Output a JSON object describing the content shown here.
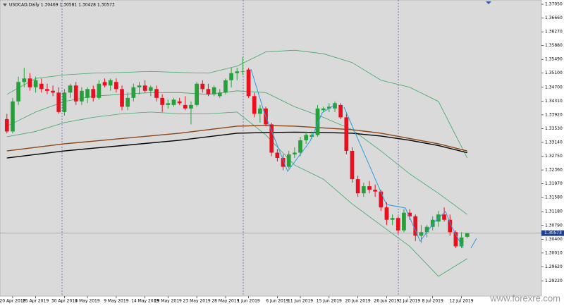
{
  "chart_data": {
    "type": "candlestick",
    "title": "USDCAD,Daily 1.30469 1.30581 1.30428 1.30573",
    "watermark": "www.forexre.com",
    "up_color": "#27a03a",
    "down_color": "#e8101e",
    "open": [
      1.338,
      1.3345,
      1.343,
      1.3485,
      1.3495,
      1.347,
      1.348,
      1.3465,
      1.346,
      1.3455,
      1.34,
      1.3455,
      1.3475,
      1.343,
      1.344,
      1.3465,
      1.344,
      1.3485,
      1.3475,
      1.3485,
      1.3465,
      1.3415,
      1.344,
      1.347,
      1.3475,
      1.346,
      1.3465,
      1.344,
      1.342,
      1.342,
      1.343,
      1.342,
      1.341,
      1.342,
      1.348,
      1.3465,
      1.345,
      1.3445,
      1.3455,
      1.349,
      1.351,
      1.3515,
      1.352,
      1.3445,
      1.3395,
      1.341,
      1.3365,
      1.3285,
      1.327,
      1.3245,
      1.328,
      1.3285,
      1.332,
      1.333,
      1.3335,
      1.3405,
      1.341,
      1.341,
      1.342,
      1.3385,
      1.329,
      1.321,
      1.317,
      1.319,
      1.318,
      1.3175,
      1.313,
      1.3095,
      1.31,
      1.3065,
      1.3115,
      1.3105,
      1.305,
      1.306,
      1.3075,
      1.309,
      1.311,
      1.3095,
      1.306,
      1.302,
      1.30469
    ],
    "high": [
      1.3395,
      1.344,
      1.35,
      1.3525,
      1.351,
      1.35,
      1.3495,
      1.348,
      1.3475,
      1.347,
      1.3465,
      1.348,
      1.3485,
      1.347,
      1.347,
      1.3475,
      1.349,
      1.3495,
      1.3495,
      1.3495,
      1.3475,
      1.3455,
      1.348,
      1.3485,
      1.349,
      1.3475,
      1.3475,
      1.345,
      1.3435,
      1.344,
      1.344,
      1.3445,
      1.343,
      1.3485,
      1.349,
      1.348,
      1.3475,
      1.3465,
      1.3495,
      1.3525,
      1.3525,
      1.3555,
      1.3525,
      1.3455,
      1.342,
      1.3415,
      1.337,
      1.3295,
      1.328,
      1.329,
      1.33,
      1.333,
      1.3345,
      1.3345,
      1.342,
      1.3415,
      1.3425,
      1.343,
      1.3425,
      1.3395,
      1.33,
      1.322,
      1.32,
      1.3205,
      1.3195,
      1.318,
      1.3145,
      1.311,
      1.3105,
      1.3125,
      1.3125,
      1.311,
      1.308,
      1.308,
      1.3105,
      1.312,
      1.313,
      1.311,
      1.3065,
      1.306,
      1.30581
    ],
    "low": [
      1.334,
      1.334,
      1.342,
      1.347,
      1.346,
      1.3455,
      1.3455,
      1.345,
      1.3445,
      1.3395,
      1.339,
      1.344,
      1.342,
      1.342,
      1.3425,
      1.343,
      1.3435,
      1.347,
      1.346,
      1.3455,
      1.3405,
      1.3405,
      1.343,
      1.345,
      1.3455,
      1.3445,
      1.343,
      1.34,
      1.341,
      1.3415,
      1.342,
      1.3405,
      1.3365,
      1.3415,
      1.3455,
      1.3445,
      1.3445,
      1.344,
      1.345,
      1.347,
      1.349,
      1.3505,
      1.344,
      1.3385,
      1.337,
      1.336,
      1.3275,
      1.326,
      1.3235,
      1.324,
      1.327,
      1.3275,
      1.331,
      1.3325,
      1.333,
      1.34,
      1.34,
      1.34,
      1.338,
      1.328,
      1.32,
      1.316,
      1.316,
      1.317,
      1.316,
      1.312,
      1.308,
      1.308,
      1.3055,
      1.306,
      1.3095,
      1.3035,
      1.303,
      1.3045,
      1.3065,
      1.3075,
      1.309,
      1.305,
      1.3015,
      1.3015,
      1.30428
    ],
    "close": [
      1.3345,
      1.343,
      1.3485,
      1.3495,
      1.347,
      1.349,
      1.3465,
      1.346,
      1.3455,
      1.34,
      1.3455,
      1.3475,
      1.343,
      1.346,
      1.3465,
      1.344,
      1.348,
      1.3475,
      1.349,
      1.3465,
      1.3415,
      1.344,
      1.347,
      1.3475,
      1.346,
      1.347,
      1.344,
      1.342,
      1.3425,
      1.3435,
      1.3425,
      1.341,
      1.342,
      1.348,
      1.3465,
      1.345,
      1.347,
      1.3455,
      1.349,
      1.351,
      1.3515,
      1.3515,
      1.3445,
      1.3395,
      1.341,
      1.3365,
      1.3285,
      1.327,
      1.3245,
      1.328,
      1.3285,
      1.332,
      1.3335,
      1.3335,
      1.341,
      1.341,
      1.3415,
      1.3425,
      1.3385,
      1.329,
      1.321,
      1.317,
      1.319,
      1.318,
      1.3175,
      1.313,
      1.3095,
      1.31,
      1.3065,
      1.3115,
      1.3105,
      1.305,
      1.306,
      1.3075,
      1.3095,
      1.311,
      1.3095,
      1.306,
      1.302,
      1.3045,
      1.30573
    ],
    "current_price": {
      "value": 1.30573,
      "label": "1.30573"
    },
    "series": [
      {
        "color": "#3aa86a",
        "x": [
          0,
          5,
          10,
          15,
          20,
          25,
          30,
          35,
          40,
          45,
          50,
          55,
          60,
          65,
          70,
          75,
          80
        ],
        "values": [
          1.345,
          1.3495,
          1.3505,
          1.351,
          1.3512,
          1.3515,
          1.3512,
          1.351,
          1.353,
          1.357,
          1.3575,
          1.3565,
          1.354,
          1.349,
          1.347,
          1.343,
          1.327
        ]
      },
      {
        "color": "#3aa86a",
        "x": [
          0,
          5,
          10,
          15,
          20,
          25,
          30,
          35,
          40,
          45,
          50,
          55,
          60,
          65,
          70,
          75,
          80
        ],
        "values": [
          1.336,
          1.34,
          1.343,
          1.3445,
          1.345,
          1.3455,
          1.3455,
          1.345,
          1.346,
          1.3455,
          1.3415,
          1.3385,
          1.335,
          1.329,
          1.3225,
          1.317,
          1.311
        ]
      },
      {
        "color": "#3aa86a",
        "x": [
          0,
          5,
          10,
          15,
          20,
          25,
          30,
          35,
          40,
          45,
          50,
          55,
          60,
          65,
          70,
          75,
          80
        ],
        "values": [
          1.333,
          1.3345,
          1.337,
          1.3385,
          1.3395,
          1.34,
          1.3395,
          1.3395,
          1.34,
          1.3335,
          1.325,
          1.321,
          1.314,
          1.308,
          1.302,
          1.2935,
          1.2985
        ]
      },
      {
        "color": "#8b4513",
        "x": [
          0,
          10,
          20,
          30,
          40,
          45,
          50,
          55,
          60,
          65,
          70,
          75,
          80
        ],
        "values": [
          1.329,
          1.331,
          1.3325,
          1.334,
          1.336,
          1.3362,
          1.336,
          1.3355,
          1.335,
          1.334,
          1.3325,
          1.331,
          1.329
        ]
      },
      {
        "color": "#000000",
        "x": [
          0,
          10,
          20,
          30,
          40,
          45,
          50,
          55,
          60,
          65,
          70,
          75,
          80
        ],
        "values": [
          1.327,
          1.329,
          1.3305,
          1.332,
          1.334,
          1.3342,
          1.3343,
          1.3342,
          1.334,
          1.3332,
          1.332,
          1.3305,
          1.3285
        ]
      }
    ],
    "xlim": [
      -1.2,
      92.9
    ],
    "xticks": [
      {
        "value": 1,
        "label": "20 Apr 2019"
      },
      {
        "value": 5,
        "label": "25 Apr 2019"
      },
      {
        "value": 10,
        "label": "30 Apr 2019"
      },
      {
        "value": 14,
        "label": "4 May 2019"
      },
      {
        "value": 19,
        "label": "9 May 2019"
      },
      {
        "value": 24,
        "label": "14 May 2019"
      },
      {
        "value": 28,
        "label": "19 May 2019"
      },
      {
        "value": 33,
        "label": "23 May 2019"
      },
      {
        "value": 38,
        "label": "28 May 2019"
      },
      {
        "value": 42,
        "label": "1 Jun 2019"
      },
      {
        "value": 47,
        "label": "6 Jun 2019"
      },
      {
        "value": 51,
        "label": "11 Jun 2019"
      },
      {
        "value": 56,
        "label": "15 Jun 2019"
      },
      {
        "value": 61,
        "label": "20 Jun 2019"
      },
      {
        "value": 66,
        "label": "26 Jun 2019"
      },
      {
        "value": 70,
        "label": "2 Jul 2019"
      },
      {
        "value": 74,
        "label": "8 Jul 2019"
      },
      {
        "value": 79,
        "label": "12 Jul 2019"
      }
    ],
    "ylim": [
      1.2879,
      1.3717
    ],
    "yticks": [
      {
        "value": 1.3705,
        "label": "1.37050"
      },
      {
        "value": 1.3666,
        "label": "1.36660"
      },
      {
        "value": 1.3627,
        "label": "1.36270"
      },
      {
        "value": 1.3588,
        "label": "1.35880"
      },
      {
        "value": 1.3549,
        "label": "1.35490"
      },
      {
        "value": 1.351,
        "label": "1.35100"
      },
      {
        "value": 1.347,
        "label": "1.34700"
      },
      {
        "value": 1.3431,
        "label": "1.34310"
      },
      {
        "value": 1.3392,
        "label": "1.33920"
      },
      {
        "value": 1.3353,
        "label": "1.33530"
      },
      {
        "value": 1.3314,
        "label": "1.33140"
      },
      {
        "value": 1.3275,
        "label": "1.32750"
      },
      {
        "value": 1.3236,
        "label": "1.32360"
      },
      {
        "value": 1.3197,
        "label": "1.31970"
      },
      {
        "value": 1.3158,
        "label": "1.31580"
      },
      {
        "value": 1.3118,
        "label": "1.31180"
      },
      {
        "value": 1.3079,
        "label": "1.30790"
      },
      {
        "value": 1.304,
        "label": "1.30400"
      },
      {
        "value": 1.3001,
        "label": "1.30010"
      },
      {
        "value": 1.2962,
        "label": "1.29620"
      },
      {
        "value": 1.2922,
        "label": "1.29220"
      }
    ]
  }
}
